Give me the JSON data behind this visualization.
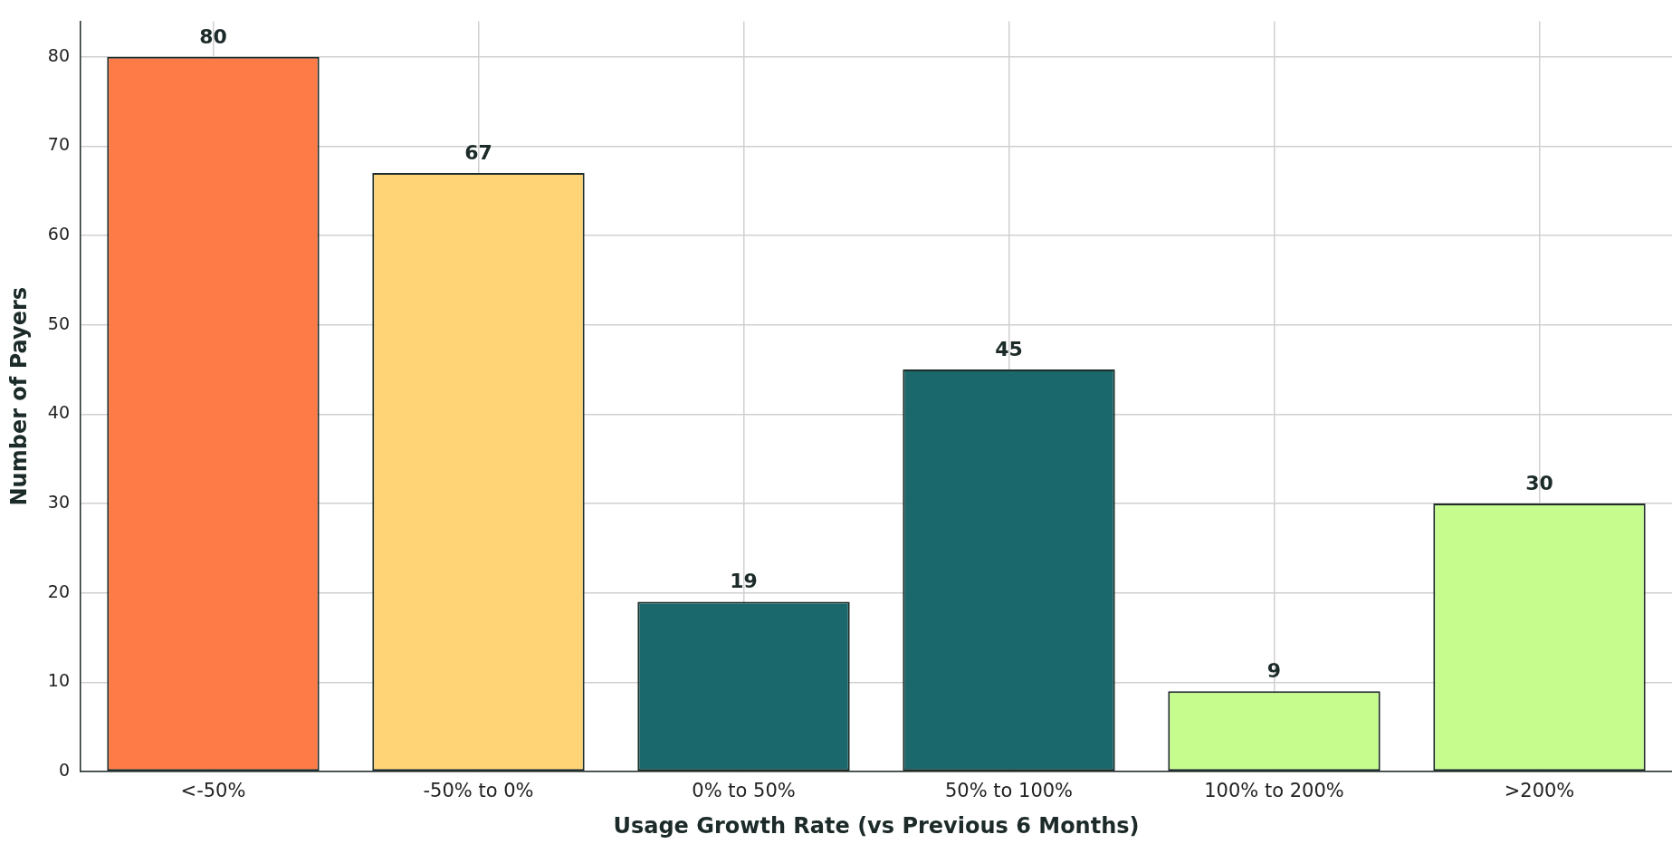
{
  "chart_data": {
    "type": "bar",
    "xlabel": "Usage Growth Rate (vs Previous 6 Months)",
    "ylabel": "Number of Payers",
    "categories": [
      "<-50%",
      "-50% to 0%",
      "0% to 50%",
      "50% to 100%",
      "100% to 200%",
      ">200%"
    ],
    "values": [
      80,
      67,
      19,
      45,
      9,
      30
    ],
    "colors": [
      "#fe7a47",
      "#fed477",
      "#1b686c",
      "#1b686c",
      "#c6fb8e",
      "#c6fb8e"
    ],
    "ylim": [
      0,
      84
    ],
    "yticks": [
      0,
      10,
      20,
      30,
      40,
      50,
      60,
      70,
      80
    ],
    "grid": true,
    "data_labels": true,
    "legend": false
  }
}
